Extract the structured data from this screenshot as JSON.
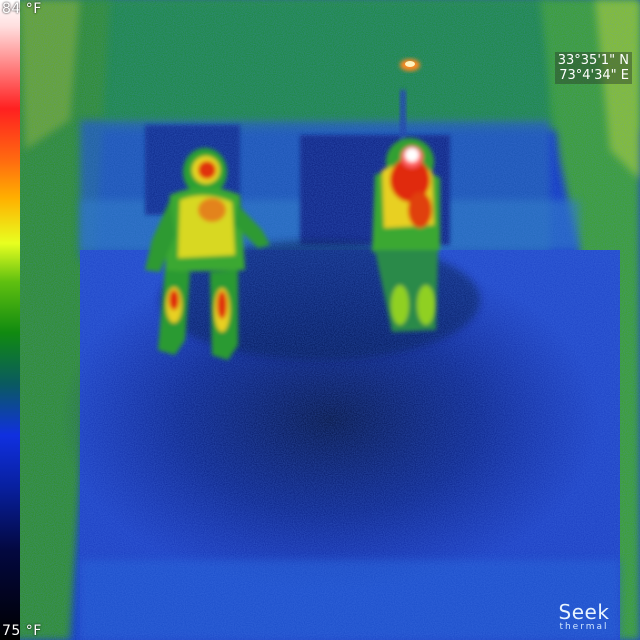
{
  "temperature_scale": {
    "max_label": "84 °F",
    "min_label": "75 °F"
  },
  "gps": {
    "latitude": "33°35'1\" N",
    "longitude": "73°4'34\" E"
  },
  "brand": {
    "wordmark": "Seek",
    "subtitle": "thermal"
  },
  "colors": {
    "cold_blue": "#0a1a8a",
    "cool_green": "#2a9a20",
    "warm_yellow": "#e6e020",
    "hot_red": "#e02010",
    "max_white": "#ffffff"
  }
}
